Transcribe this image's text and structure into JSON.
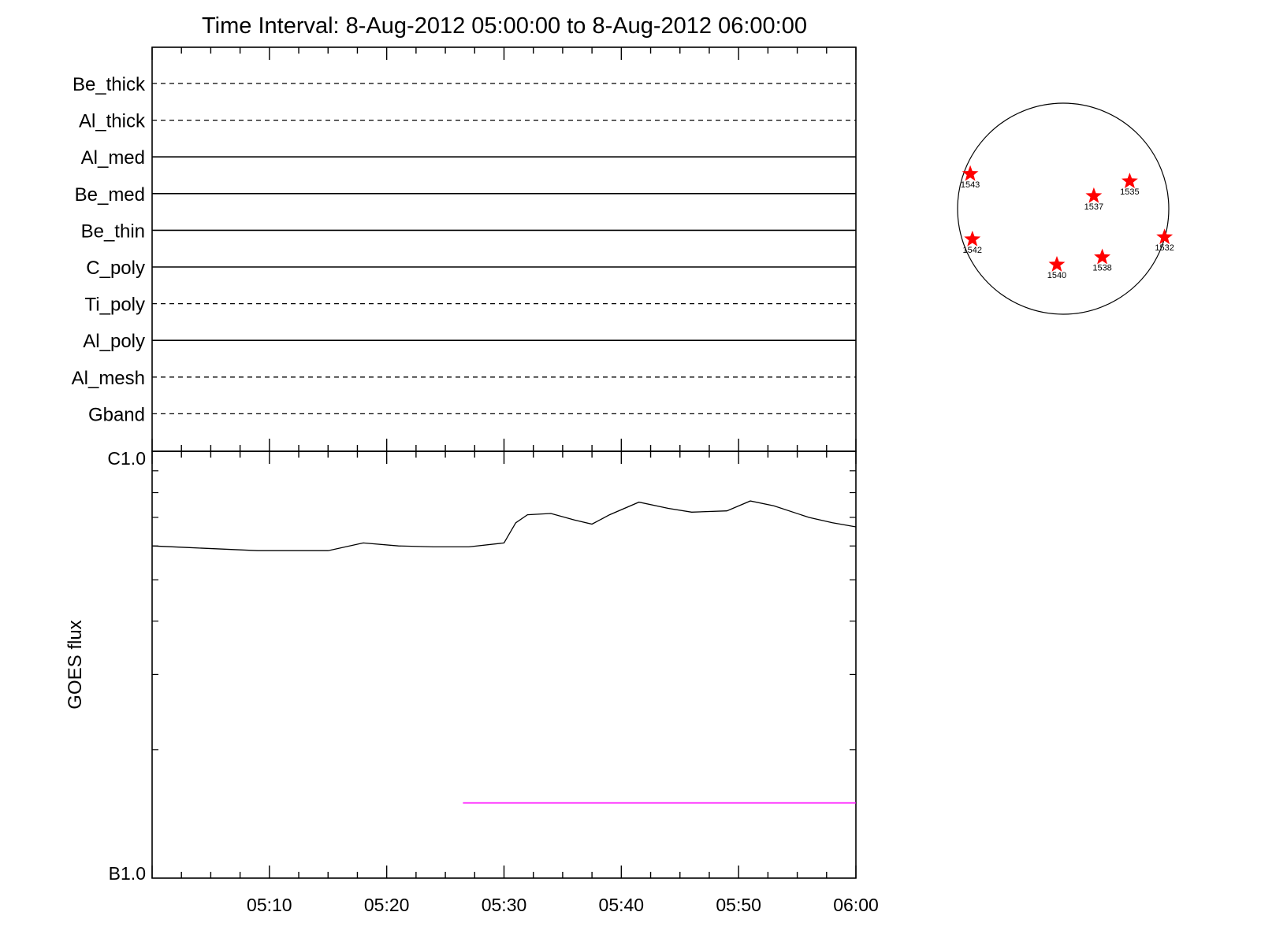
{
  "title": "Time Interval:  8-Aug-2012 05:00:00 to  8-Aug-2012 06:00:00",
  "colors": {
    "axis": "#000000",
    "goes_line": "#000000",
    "magenta_line": "#ff00ff",
    "marker": "#ff0000"
  },
  "chart_data": [
    {
      "type": "table",
      "rows": [
        {
          "label": "Be_thick",
          "style": "dashed"
        },
        {
          "label": "Al_thick",
          "style": "dashed"
        },
        {
          "label": "Al_med",
          "style": "solid"
        },
        {
          "label": "Be_med",
          "style": "solid"
        },
        {
          "label": "Be_thin",
          "style": "solid"
        },
        {
          "label": "C_poly",
          "style": "solid"
        },
        {
          "label": "Ti_poly",
          "style": "dashed"
        },
        {
          "label": "Al_poly",
          "style": "solid"
        },
        {
          "label": "Al_mesh",
          "style": "dashed"
        },
        {
          "label": "Gband",
          "style": "dashed"
        }
      ],
      "xlim": [
        "05:00",
        "06:00"
      ]
    },
    {
      "type": "line",
      "ylabel": "GOES flux",
      "ytick_labels": [
        "C1.0",
        "B1.0"
      ],
      "yscale": "log",
      "ylim": [
        1e-07,
        1e-06
      ],
      "xlim": [
        "05:00",
        "06:00"
      ],
      "xtick_labels": [
        "05:10",
        "05:20",
        "05:30",
        "05:40",
        "05:50",
        "06:00"
      ],
      "series": [
        {
          "x_min": [
            0,
            3,
            6,
            9,
            12,
            15,
            18,
            21,
            24,
            27,
            30,
            31,
            32,
            34,
            36,
            37.5,
            39,
            41.5,
            44,
            46,
            49,
            51,
            53,
            56,
            58,
            60
          ],
          "values": [
            6e-07,
            5.95e-07,
            5.9e-07,
            5.85e-07,
            5.85e-07,
            5.85e-07,
            6.1e-07,
            6e-07,
            5.97e-07,
            5.97e-07,
            6.1e-07,
            6.8e-07,
            7.1e-07,
            7.15e-07,
            6.9e-07,
            6.75e-07,
            7.1e-07,
            7.6e-07,
            7.35e-07,
            7.2e-07,
            7.25e-07,
            7.65e-07,
            7.45e-07,
            7e-07,
            6.8e-07,
            6.65e-07
          ],
          "color": "#000000"
        },
        {
          "x_min": [
            26.5,
            60
          ],
          "values": [
            1.5e-07,
            1.5e-07
          ],
          "color": "#ff00ff"
        }
      ]
    },
    {
      "type": "scatter",
      "points": [
        {
          "label": "1543",
          "x": -0.88,
          "y": 0.33
        },
        {
          "label": "1535",
          "x": 0.63,
          "y": 0.26
        },
        {
          "label": "1537",
          "x": 0.29,
          "y": 0.12
        },
        {
          "label": "1542",
          "x": -0.86,
          "y": -0.29
        },
        {
          "label": "1532",
          "x": 0.96,
          "y": -0.27
        },
        {
          "label": "1538",
          "x": 0.37,
          "y": -0.46
        },
        {
          "label": "1540",
          "x": -0.06,
          "y": -0.53
        }
      ]
    }
  ]
}
